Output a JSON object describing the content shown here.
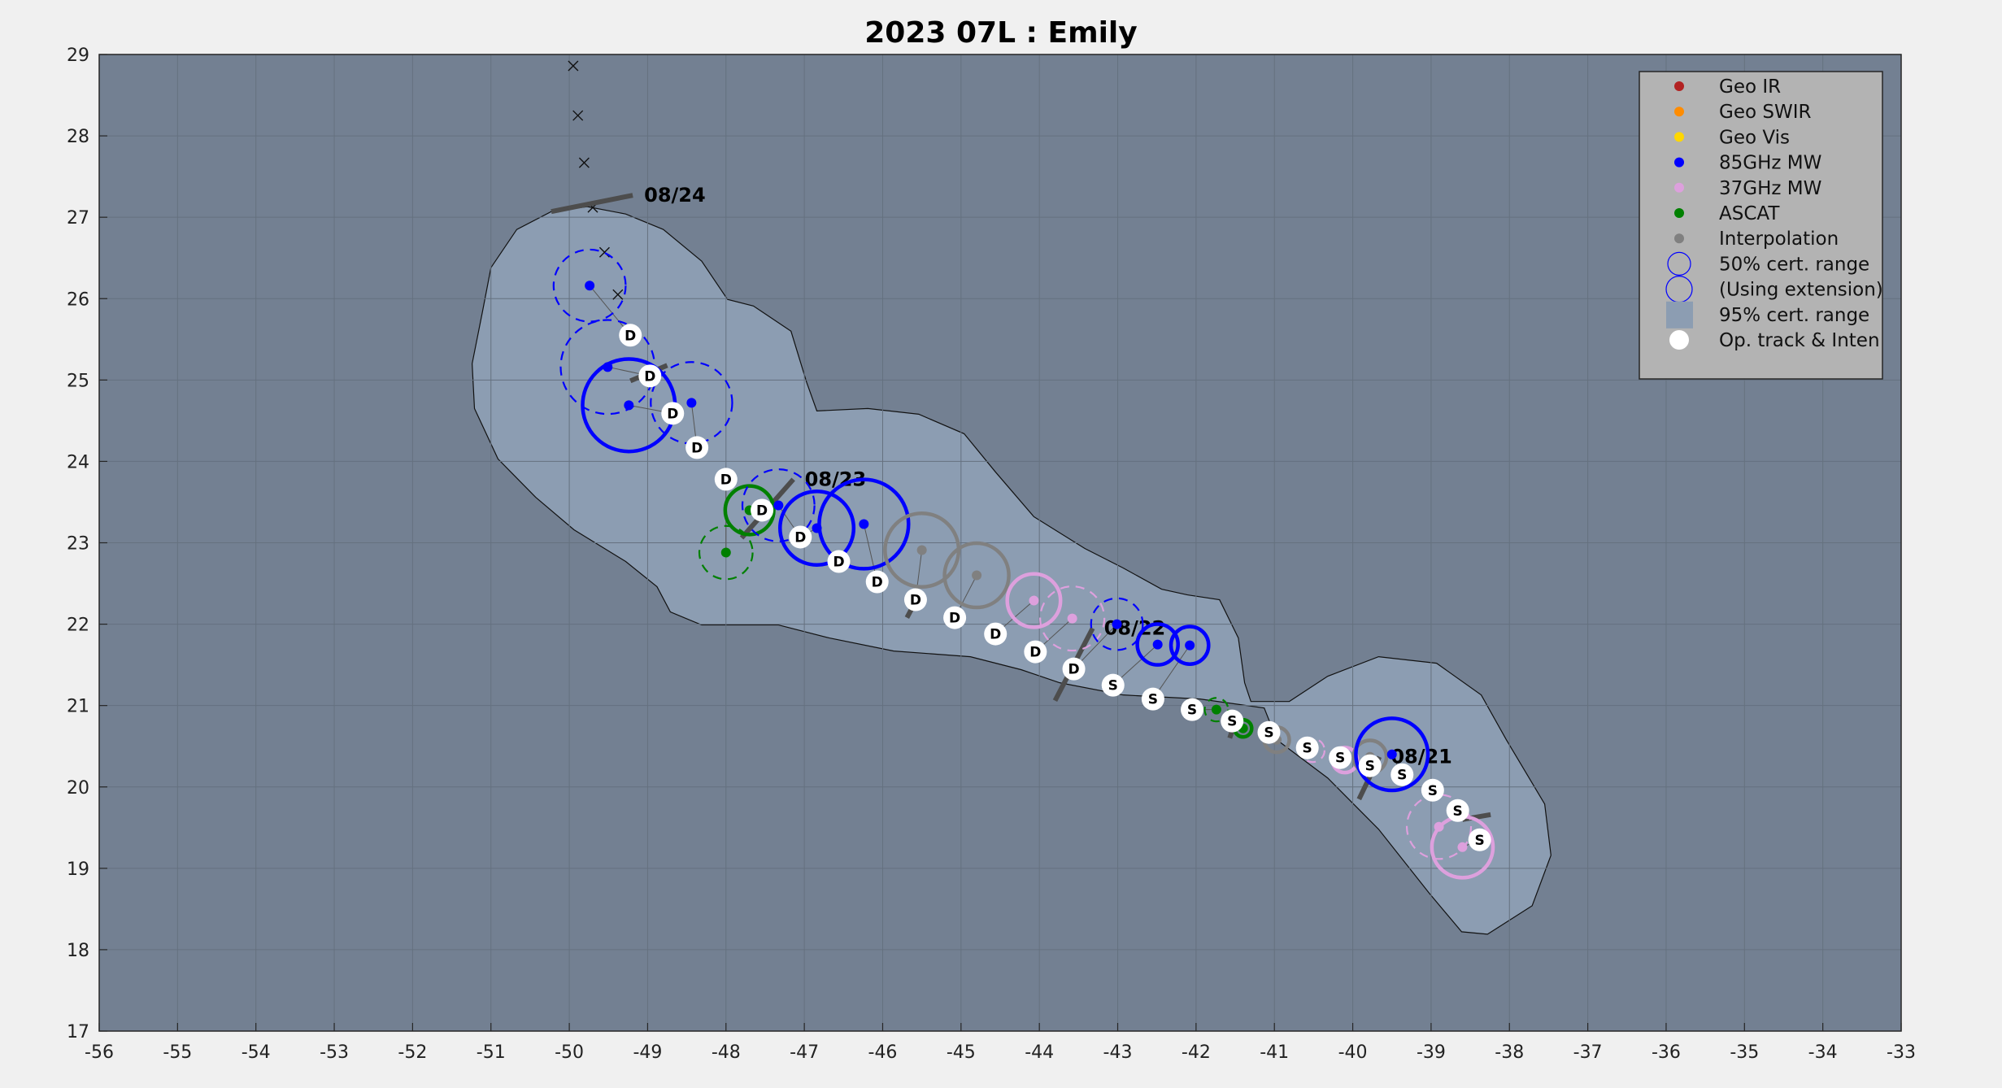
{
  "chart_data": {
    "type": "scatter",
    "title": "2023  07L :  Emily",
    "xlabel": "",
    "ylabel": "",
    "xlim": [
      -56,
      -33
    ],
    "ylim": [
      17,
      29
    ],
    "grid": true,
    "x_ticks": [
      -56,
      -55,
      -54,
      -53,
      -52,
      -51,
      -50,
      -49,
      -48,
      -47,
      -46,
      -45,
      -44,
      -43,
      -42,
      -41,
      -40,
      -39,
      -38,
      -37,
      -36,
      -35,
      -34,
      -33
    ],
    "y_ticks": [
      17,
      18,
      19,
      20,
      21,
      22,
      23,
      24,
      25,
      26,
      27,
      28,
      29
    ],
    "legend_position": "top-right",
    "legend": [
      {
        "label": "Geo IR",
        "color": "#b22222",
        "kind": "dot"
      },
      {
        "label": "Geo SWIR",
        "color": "#ff8c00",
        "kind": "dot"
      },
      {
        "label": "Geo Vis",
        "color": "#ffd700",
        "kind": "dot"
      },
      {
        "label": "85GHz MW",
        "color": "#0000ff",
        "kind": "dot"
      },
      {
        "label": "37GHz MW",
        "color": "#dda0dd",
        "kind": "dot"
      },
      {
        "label": "ASCAT",
        "color": "#008000",
        "kind": "dot"
      },
      {
        "label": "Interpolation",
        "color": "#808080",
        "kind": "dot"
      },
      {
        "label": "50% cert. range",
        "color": "#0000ff",
        "kind": "circle"
      },
      {
        "label": "(Using extension)",
        "color": "#0000ff",
        "kind": "circle-large"
      },
      {
        "label": "95% cert. range",
        "color": "#8c9db2",
        "kind": "square"
      },
      {
        "label": "Op. track & Inten",
        "color": "#ffffff",
        "kind": "white-dot"
      }
    ],
    "colors": {
      "background": "#738092",
      "envelope": "#8c9db2",
      "grid": "#65717f",
      "barb": "#4d4d4d"
    },
    "op_track": [
      {
        "lon": -49.22,
        "lat": 25.55,
        "label": "D"
      },
      {
        "lon": -48.97,
        "lat": 25.05,
        "label": "D"
      },
      {
        "lon": -48.68,
        "lat": 24.59,
        "label": "D"
      },
      {
        "lon": -48.37,
        "lat": 24.17,
        "label": "D"
      },
      {
        "lon": -48.0,
        "lat": 23.78,
        "label": "D"
      },
      {
        "lon": -47.54,
        "lat": 23.4,
        "label": "D"
      },
      {
        "lon": -47.05,
        "lat": 23.07,
        "label": "D"
      },
      {
        "lon": -46.56,
        "lat": 22.77,
        "label": "D"
      },
      {
        "lon": -46.07,
        "lat": 22.52,
        "label": "D"
      },
      {
        "lon": -45.58,
        "lat": 22.3,
        "label": "D"
      },
      {
        "lon": -45.08,
        "lat": 22.08,
        "label": "D"
      },
      {
        "lon": -44.56,
        "lat": 21.88,
        "label": "D"
      },
      {
        "lon": -44.05,
        "lat": 21.66,
        "label": "D"
      },
      {
        "lon": -43.56,
        "lat": 21.45,
        "label": "D"
      },
      {
        "lon": -43.06,
        "lat": 21.25,
        "label": "S"
      },
      {
        "lon": -42.55,
        "lat": 21.08,
        "label": "S"
      },
      {
        "lon": -42.05,
        "lat": 20.95,
        "label": "S"
      },
      {
        "lon": -41.54,
        "lat": 20.81,
        "label": "S"
      },
      {
        "lon": -41.07,
        "lat": 20.67,
        "label": "S"
      },
      {
        "lon": -40.58,
        "lat": 20.48,
        "label": "S"
      },
      {
        "lon": -40.16,
        "lat": 20.36,
        "label": "S"
      },
      {
        "lon": -39.78,
        "lat": 20.26,
        "label": "S"
      },
      {
        "lon": -39.37,
        "lat": 20.15,
        "label": "S"
      },
      {
        "lon": -38.98,
        "lat": 19.96,
        "label": "S"
      },
      {
        "lon": -38.66,
        "lat": 19.71,
        "label": "S"
      },
      {
        "lon": -38.38,
        "lat": 19.35,
        "label": "S"
      }
    ],
    "fixes": [
      {
        "type": "85GHz MW",
        "lon": -49.74,
        "lat": 26.16,
        "radius_deg": 0.46,
        "dashed": true,
        "op": 0
      },
      {
        "type": "85GHz MW",
        "lon": -49.51,
        "lat": 25.16,
        "radius_deg": 0.6,
        "dashed": true,
        "op": 1
      },
      {
        "type": "85GHz MW",
        "lon": -49.24,
        "lat": 24.69,
        "radius_deg": 0.59,
        "dashed": false,
        "op": 2
      },
      {
        "type": "85GHz MW",
        "lon": -48.44,
        "lat": 24.72,
        "radius_deg": 0.52,
        "dashed": true,
        "op": 3
      },
      {
        "type": "ASCAT",
        "lon": -47.7,
        "lat": 23.4,
        "radius_deg": 0.31,
        "dashed": false,
        "op": 5
      },
      {
        "type": "ASCAT",
        "lon": -48.0,
        "lat": 22.88,
        "radius_deg": 0.34,
        "dashed": true,
        "op": 4
      },
      {
        "type": "85GHz MW",
        "lon": -47.33,
        "lat": 23.46,
        "radius_deg": 0.46,
        "dashed": true,
        "op": 6
      },
      {
        "type": "85GHz MW",
        "lon": -46.84,
        "lat": 23.18,
        "radius_deg": 0.47,
        "dashed": false,
        "op": 6
      },
      {
        "type": "85GHz MW",
        "lon": -46.24,
        "lat": 23.23,
        "radius_deg": 0.57,
        "dashed": false,
        "op": 8
      },
      {
        "type": "Interpolation",
        "lon": -45.5,
        "lat": 22.91,
        "radius_deg": 0.47,
        "dashed": false,
        "op": 9
      },
      {
        "type": "Interpolation",
        "lon": -44.8,
        "lat": 22.6,
        "radius_deg": 0.41,
        "dashed": false,
        "op": 10
      },
      {
        "type": "37GHz MW",
        "lon": -44.07,
        "lat": 22.29,
        "radius_deg": 0.34,
        "dashed": false,
        "op": 11
      },
      {
        "type": "37GHz MW",
        "lon": -43.58,
        "lat": 22.07,
        "radius_deg": 0.41,
        "dashed": true,
        "op": 12
      },
      {
        "type": "85GHz MW",
        "lon": -43.01,
        "lat": 22.0,
        "radius_deg": 0.33,
        "dashed": true,
        "op": 13
      },
      {
        "type": "85GHz MW",
        "lon": -42.49,
        "lat": 21.75,
        "radius_deg": 0.26,
        "dashed": false,
        "op": 14
      },
      {
        "type": "85GHz MW",
        "lon": -42.08,
        "lat": 21.74,
        "radius_deg": 0.24,
        "dashed": false,
        "op": 15
      },
      {
        "type": "ASCAT",
        "lon": -41.74,
        "lat": 20.95,
        "radius_deg": 0.15,
        "dashed": true,
        "op": 16
      },
      {
        "type": "ASCAT",
        "lon": -41.4,
        "lat": 20.72,
        "radius_deg": 0.11,
        "dashed": false,
        "op": 17
      },
      {
        "type": "Interpolation",
        "lon": -40.97,
        "lat": 20.58,
        "radius_deg": 0.16,
        "dashed": false,
        "op": 18
      },
      {
        "type": "37GHz MW",
        "lon": -40.51,
        "lat": 20.45,
        "radius_deg": 0.15,
        "dashed": true,
        "op": 19
      },
      {
        "type": "37GHz MW",
        "lon": -40.1,
        "lat": 20.33,
        "radius_deg": 0.16,
        "dashed": false,
        "op": 20
      },
      {
        "type": "Interpolation",
        "lon": -39.78,
        "lat": 20.37,
        "radius_deg": 0.21,
        "dashed": false,
        "op": 21
      },
      {
        "type": "85GHz MW",
        "lon": -39.5,
        "lat": 20.4,
        "radius_deg": 0.46,
        "dashed": false,
        "op": 22
      },
      {
        "type": "37GHz MW",
        "lon": -38.9,
        "lat": 19.51,
        "radius_deg": 0.41,
        "dashed": true,
        "op": 24
      },
      {
        "type": "37GHz MW",
        "lon": -38.6,
        "lat": 19.26,
        "radius_deg": 0.39,
        "dashed": false,
        "op": 25
      }
    ],
    "x_markers": [
      {
        "lon": -49.95,
        "lat": 28.86
      },
      {
        "lon": -49.89,
        "lat": 28.25
      },
      {
        "lon": -49.81,
        "lat": 27.67
      },
      {
        "lon": -49.7,
        "lat": 27.12
      },
      {
        "lon": -49.55,
        "lat": 26.57
      },
      {
        "lon": -49.38,
        "lat": 26.05
      }
    ],
    "date_marks": [
      {
        "label": "08/24",
        "from": [
          -50.23,
          27.07
        ],
        "to": [
          -49.19,
          27.27
        ]
      },
      {
        "label": "08/23",
        "from": [
          -47.8,
          23.06
        ],
        "to": [
          -47.14,
          23.78
        ]
      },
      {
        "label": "08/22",
        "from": [
          -43.8,
          21.06
        ],
        "to": [
          -43.32,
          21.95
        ]
      },
      {
        "label": "08/21",
        "from": [
          -39.92,
          19.85
        ],
        "to": [
          -39.66,
          20.37
        ]
      }
    ],
    "minor_barbs": [
      {
        "from": [
          -49.22,
          24.99
        ],
        "to": [
          -48.75,
          25.18
        ]
      },
      {
        "from": [
          -45.69,
          22.08
        ],
        "to": [
          -45.58,
          22.28
        ]
      },
      {
        "from": [
          -41.57,
          20.6
        ],
        "to": [
          -41.52,
          20.75
        ]
      },
      {
        "from": [
          -38.6,
          19.6
        ],
        "to": [
          -38.24,
          19.66
        ]
      }
    ],
    "envelope_95": [
      [
        -49.77,
        27.13
      ],
      [
        -50.23,
        27.07
      ],
      [
        -50.67,
        26.85
      ],
      [
        -51.0,
        26.38
      ],
      [
        -51.11,
        25.83
      ],
      [
        -51.24,
        25.2
      ],
      [
        -51.21,
        24.65
      ],
      [
        -50.91,
        24.03
      ],
      [
        -50.43,
        23.56
      ],
      [
        -49.94,
        23.16
      ],
      [
        -49.28,
        22.77
      ],
      [
        -48.88,
        22.46
      ],
      [
        -48.71,
        22.15
      ],
      [
        -48.31,
        21.99
      ],
      [
        -47.33,
        21.99
      ],
      [
        -46.68,
        21.83
      ],
      [
        -45.86,
        21.67
      ],
      [
        -44.88,
        21.6
      ],
      [
        -44.23,
        21.44
      ],
      [
        -43.74,
        21.28
      ],
      [
        -42.93,
        21.13
      ],
      [
        -41.95,
        21.08
      ],
      [
        -41.13,
        20.97
      ],
      [
        -40.97,
        20.58
      ],
      [
        -40.32,
        20.11
      ],
      [
        -39.67,
        19.48
      ],
      [
        -39.02,
        18.69
      ],
      [
        -38.61,
        18.22
      ],
      [
        -38.28,
        18.19
      ],
      [
        -37.71,
        18.54
      ],
      [
        -37.47,
        19.16
      ],
      [
        -37.55,
        19.79
      ],
      [
        -38.04,
        20.58
      ],
      [
        -38.36,
        21.13
      ],
      [
        -38.93,
        21.52
      ],
      [
        -39.67,
        21.6
      ],
      [
        -40.32,
        21.36
      ],
      [
        -40.81,
        21.05
      ],
      [
        -41.3,
        21.05
      ],
      [
        -41.38,
        21.28
      ],
      [
        -41.46,
        21.83
      ],
      [
        -41.7,
        22.3
      ],
      [
        -42.11,
        22.36
      ],
      [
        -42.44,
        22.43
      ],
      [
        -42.93,
        22.69
      ],
      [
        -43.42,
        22.93
      ],
      [
        -44.07,
        23.32
      ],
      [
        -44.56,
        23.87
      ],
      [
        -44.96,
        24.34
      ],
      [
        -45.54,
        24.58
      ],
      [
        -46.19,
        24.65
      ],
      [
        -46.84,
        24.62
      ],
      [
        -46.97,
        24.97
      ],
      [
        -47.17,
        25.6
      ],
      [
        -47.65,
        25.91
      ],
      [
        -47.98,
        25.99
      ],
      [
        -48.31,
        26.46
      ],
      [
        -48.8,
        26.85
      ],
      [
        -49.28,
        27.04
      ]
    ]
  }
}
